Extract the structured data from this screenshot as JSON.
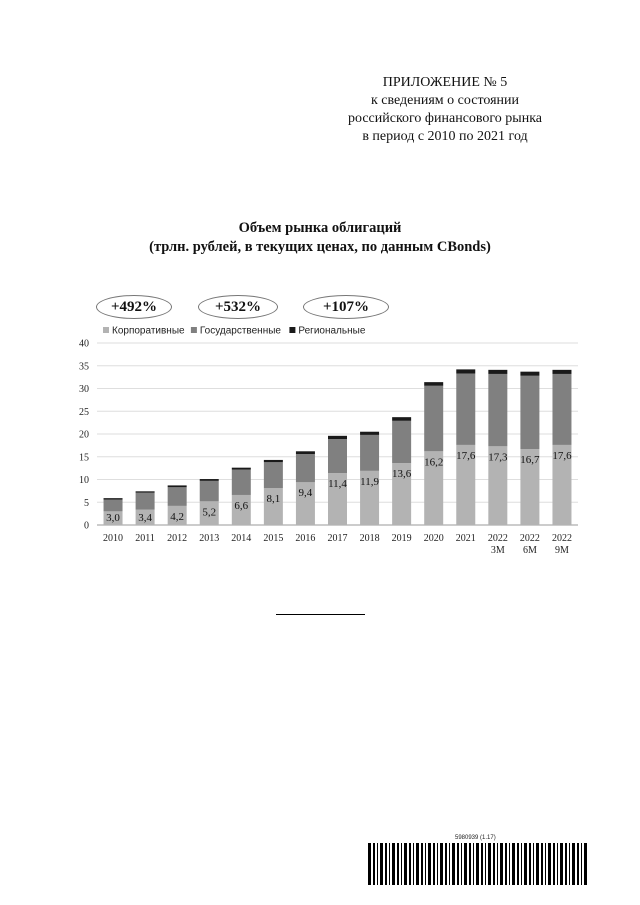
{
  "header": {
    "line1": "ПРИЛОЖЕНИЕ № 5",
    "line2": "к сведениям о состоянии",
    "line3": "российского финансового рынка",
    "line4": "в период с 2010 по 2021 год"
  },
  "growth_badges": [
    "+492%",
    "+532%",
    "+107%"
  ],
  "barcode_text": "5980939 (1.17)",
  "chart_data": {
    "type": "bar",
    "stacked": true,
    "title": "Объем рынка облигаций",
    "subtitle": "(трлн. рублей, в текущих ценах, по данным CBonds)",
    "categories": [
      "2010",
      "2011",
      "2012",
      "2013",
      "2014",
      "2015",
      "2016",
      "2017",
      "2018",
      "2019",
      "2020",
      "2021",
      "2022 3М",
      "2022 6М",
      "2022 9М"
    ],
    "series": [
      {
        "name": "Корпоративные",
        "color": "#b3b3b3",
        "values": [
          3.0,
          3.4,
          4.2,
          5.2,
          6.6,
          8.1,
          9.4,
          11.4,
          11.9,
          13.6,
          16.2,
          17.6,
          17.3,
          16.7,
          17.6
        ]
      },
      {
        "name": "Государственные",
        "color": "#808080",
        "values": [
          2.6,
          3.7,
          4.1,
          4.5,
          5.6,
          5.7,
          6.2,
          7.5,
          7.9,
          9.3,
          14.4,
          15.7,
          15.9,
          16.1,
          15.6
        ]
      },
      {
        "name": "Региональные",
        "color": "#1a1a1a",
        "values": [
          0.3,
          0.3,
          0.4,
          0.4,
          0.4,
          0.5,
          0.6,
          0.7,
          0.7,
          0.8,
          0.8,
          0.9,
          0.9,
          0.9,
          0.9
        ]
      }
    ],
    "data_labels": [
      "3,0",
      "3,4",
      "4,2",
      "5,2",
      "6,6",
      "8,1",
      "9,4",
      "11,4",
      "11,9",
      "13,6",
      "16,2",
      "17,6",
      "17,3",
      "16,7",
      "17,6"
    ],
    "ylim": [
      0,
      40
    ],
    "yticks": [
      0,
      5,
      10,
      15,
      20,
      25,
      30,
      35,
      40
    ],
    "grid": true,
    "legend": "top-left"
  }
}
